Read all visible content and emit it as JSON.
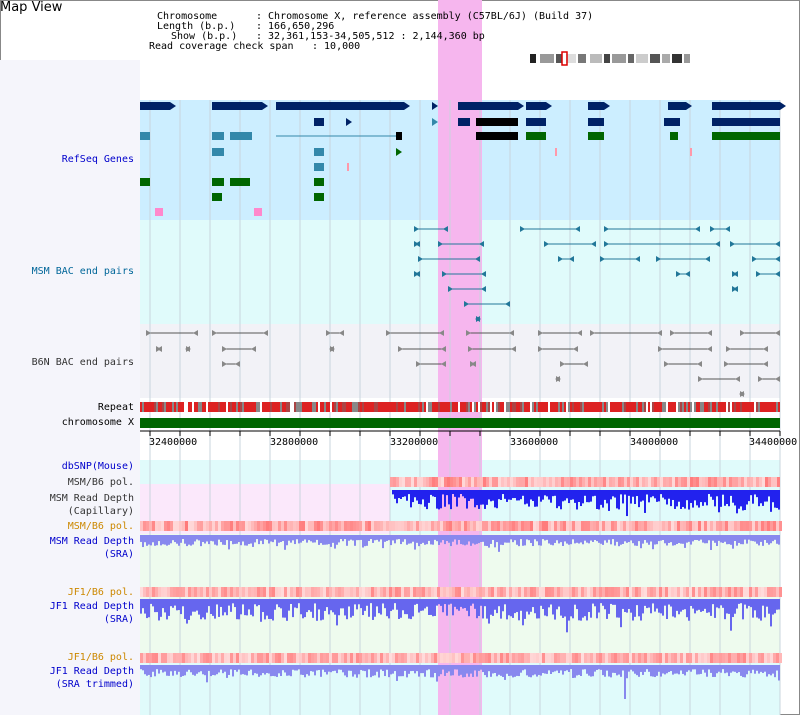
{
  "title": "Map View",
  "header": {
    "chromosome_key": "Chromosome",
    "chromosome_val": ": Chromosome X, reference assembly (C57BL/6J) (Build 37)",
    "length_key": "Length (b.p.)",
    "length_val": ": 166,650,296",
    "show_key": "Show (b.p.)",
    "show_val": ": 32,361,153-34,505,512 : 2,144,360 bp",
    "span_key": "Read coverage check span",
    "span_val": ": 10,000"
  },
  "tracks": {
    "refseq": "RefSeq Genes",
    "msm_bac": "MSM BAC end pairs",
    "b6n_bac": "B6N BAC end pairs",
    "repeat": "Repeat",
    "chromosome": "chromosome X",
    "dbsnp": "dbSNP(Mouse)",
    "msm_b6_pol_1": "MSM/B6 pol.",
    "msm_read_depth_cap": "MSM Read Depth",
    "msm_read_depth_cap_sub": "(Capillary)",
    "msm_b6_pol_2": "MSM/B6 pol.",
    "msm_read_depth_sra": "MSM Read Depth",
    "msm_read_depth_sra_sub": "(SRA)",
    "jf1_b6_pol_1": "JF1/B6 pol.",
    "jf1_read_depth_sra": "JF1 Read Depth",
    "jf1_read_depth_sra_sub": "(SRA)",
    "jf1_b6_pol_2": "JF1/B6 pol.",
    "jf1_read_depth_trim": "JF1 Read Depth",
    "jf1_read_depth_trim_sub": "(SRA trimmed)"
  },
  "axis": {
    "ticks": [
      "32400000",
      "32800000",
      "33200000",
      "33600000",
      "34000000",
      "34400000"
    ]
  },
  "colors": {
    "refseq_bg": "#cceeff",
    "msm_bac_bg": "#e0fbfb",
    "b6n_bac_bg": "#f2f2f7",
    "highlight": "#f6b6ee",
    "chromosome_bar": "#006600",
    "depth_dark": "#2222ee",
    "depth_light": "#8888ee"
  }
}
